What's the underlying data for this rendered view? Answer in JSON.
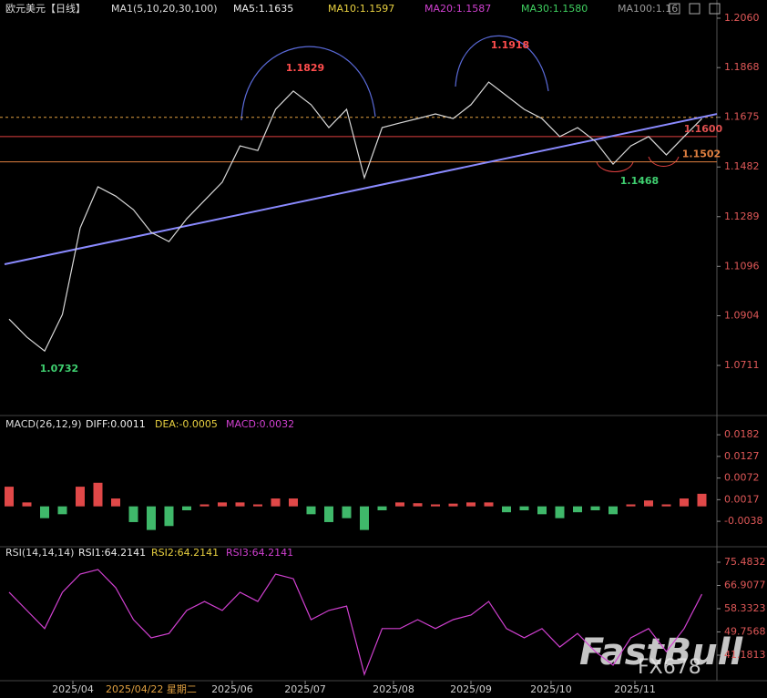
{
  "header": {
    "symbol": "欧元美元【日线】",
    "ma_set": "MA1(5,10,20,30,100)",
    "ma5": "MA5:1.1635",
    "ma10": "MA10:1.1597",
    "ma20": "MA20:1.1587",
    "ma30": "MA30:1.1580",
    "ma100": "MA100:1.16"
  },
  "macd_header": {
    "name": "MACD(26,12,9)",
    "diff": "DIFF:0.0011",
    "dea": "DEA:-0.0005",
    "macd": "MACD:0.0032"
  },
  "rsi_header": {
    "name": "RSI(14,14,14)",
    "rsi1": "RSI1:64.2141",
    "rsi2": "RSI2:64.2141",
    "rsi3": "RSI3:64.2141"
  },
  "footer": {
    "cursor_date": "2025/04/22 星期二"
  },
  "watermark": {
    "brand": "FastBull",
    "sub": "FX678"
  },
  "chart_data": [
    {
      "type": "line",
      "color": "#d8d8d8",
      "values": [
        1.0891,
        1.0821,
        1.0767,
        1.0909,
        1.1245,
        1.1405,
        1.1369,
        1.1316,
        1.1228,
        1.1192,
        1.1281,
        1.1352,
        1.1423,
        1.1564,
        1.1546,
        1.1706,
        1.1777,
        1.1724,
        1.1635,
        1.1706,
        1.144,
        1.1635,
        1.1653,
        1.167,
        1.1688,
        1.167,
        1.1724,
        1.1812,
        1.1759,
        1.1706,
        1.167,
        1.16,
        1.1635,
        1.1582,
        1.1493,
        1.1564,
        1.16,
        1.1529,
        1.16,
        1.167
      ],
      "ylim": [
        1.052,
        1.2113
      ],
      "yticks": [
        {
          "value": 1.206,
          "label": "1.2060"
        },
        1.1868,
        1.1675,
        1.1482,
        1.1289,
        1.1096,
        1.0904,
        1.0711
      ],
      "xticks": [
        {
          "value": 3.59,
          "label": "2025/04"
        },
        {
          "value": 12.56,
          "label": "2025/06"
        },
        {
          "value": 16.67,
          "label": "2025/07"
        },
        {
          "value": 21.64,
          "label": "2025/08"
        },
        {
          "value": 26,
          "label": "2025/09"
        },
        {
          "value": 30.51,
          "label": "2025/10"
        },
        {
          "value": 35.23,
          "label": "2025/11"
        }
      ],
      "levels": [
        1.1675,
        1.16,
        1.1502
      ],
      "level_colors": [
        "#e0a040",
        "#e04040",
        "#e08040"
      ],
      "trendline": [
        1.1104,
        1.1688
      ],
      "trendline_color": "#8a8aff",
      "annotations": [
        1.1829,
        1.1918,
        1.1468,
        1.0732,
        {
          "value": 1.16,
          "label": "1.1600"
        },
        1.1502
      ]
    },
    {
      "type": "bar",
      "up_color": "#e04848",
      "down_color": "#3fb86a",
      "values": [
        0.005,
        0.001,
        -0.003,
        -0.002,
        0.005,
        0.006,
        0.002,
        -0.004,
        -0.006,
        -0.005,
        -0.001,
        0.0005,
        0.001,
        0.001,
        0.0005,
        0.002,
        0.002,
        -0.002,
        -0.004,
        -0.003,
        -0.006,
        -0.001,
        0.001,
        0.0008,
        0.0005,
        0.0007,
        0.001,
        0.001,
        -0.0015,
        -0.001,
        -0.002,
        -0.003,
        -0.0015,
        -0.001,
        -0.002,
        0.0005,
        0.0015,
        0.0005,
        0.002,
        0.0032
      ],
      "ylim": [
        -0.0098,
        0.0217
      ],
      "yticks": [
        0.0182,
        0.0127,
        0.0072,
        0.0017,
        -0.0038
      ]
    },
    {
      "type": "line",
      "color": "#d040d0",
      "values": [
        64.4,
        57.7,
        51,
        64.4,
        71.1,
        72.8,
        66.1,
        54.3,
        47.6,
        49.2,
        57.7,
        61,
        57.7,
        64.4,
        61,
        71.1,
        69.4,
        54.3,
        57.7,
        59.3,
        34.1,
        51,
        51,
        54.3,
        51,
        54.3,
        56,
        61,
        51,
        47.6,
        51,
        44.2,
        49.2,
        42.5,
        37.5,
        47.6,
        51,
        42.5,
        51,
        63.7
      ],
      "ylim": [
        32.44,
        79.52
      ],
      "yticks": [
        75.4832,
        66.9077,
        58.3323,
        49.7568,
        41.1813
      ]
    }
  ]
}
